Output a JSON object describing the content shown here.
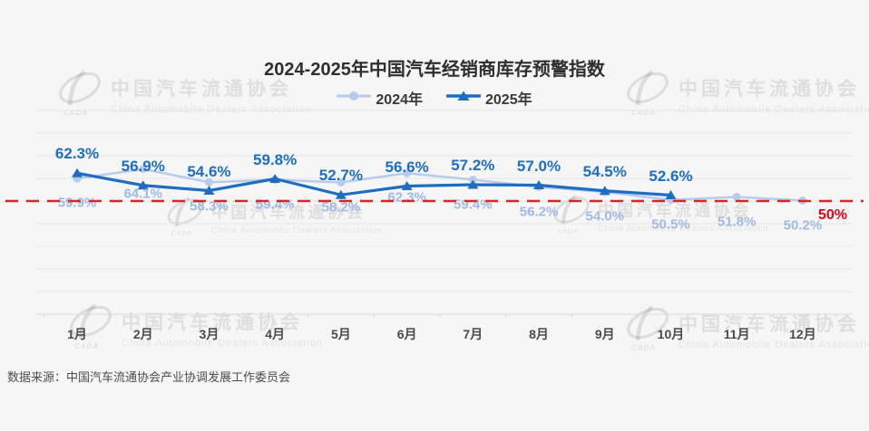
{
  "title": "2024-2025年中国汽车经销商库存预警指数",
  "source": "数据来源：中国汽车流通协会产业协调发展工作委员会",
  "watermark": {
    "cn": "中国汽车流通协会",
    "en": "China Automobile Dealers Association",
    "logo_sub": "CADA"
  },
  "colors": {
    "background": "#f6f6f6",
    "grid": "#e7e7e7",
    "axis": "#d8d8d8",
    "title_text": "#2e2e2e",
    "category_text": "#4a4a4a",
    "threshold_line": "#e02222",
    "threshold_text": "#e60012"
  },
  "chart_data": {
    "type": "line",
    "title": "2024-2025年中国汽车经销商库存预警指数",
    "categories": [
      "1月",
      "2月",
      "3月",
      "4月",
      "5月",
      "6月",
      "7月",
      "8月",
      "9月",
      "10月",
      "11月",
      "12月"
    ],
    "series": [
      {
        "name": "2024年",
        "marker": "circle",
        "color": "#b7cbea",
        "label_color": "#9db9e4",
        "label_position": "below",
        "values": [
          59.9,
          64.1,
          58.3,
          59.4,
          58.2,
          62.3,
          59.4,
          56.2,
          54.0,
          50.5,
          51.8,
          50.2
        ]
      },
      {
        "name": "2025年",
        "marker": "triangle",
        "color": "#1d6ec3",
        "label_color": "#1d6ec3",
        "label_position": "above",
        "values": [
          62.3,
          56.9,
          54.6,
          59.8,
          52.7,
          56.6,
          57.2,
          57.0,
          54.5,
          52.6
        ]
      }
    ],
    "value_suffix": "%",
    "ylim": [
      0,
      90
    ],
    "grid": true,
    "legend_position": "top",
    "reference_line": {
      "value": 50,
      "label": "50%"
    }
  }
}
